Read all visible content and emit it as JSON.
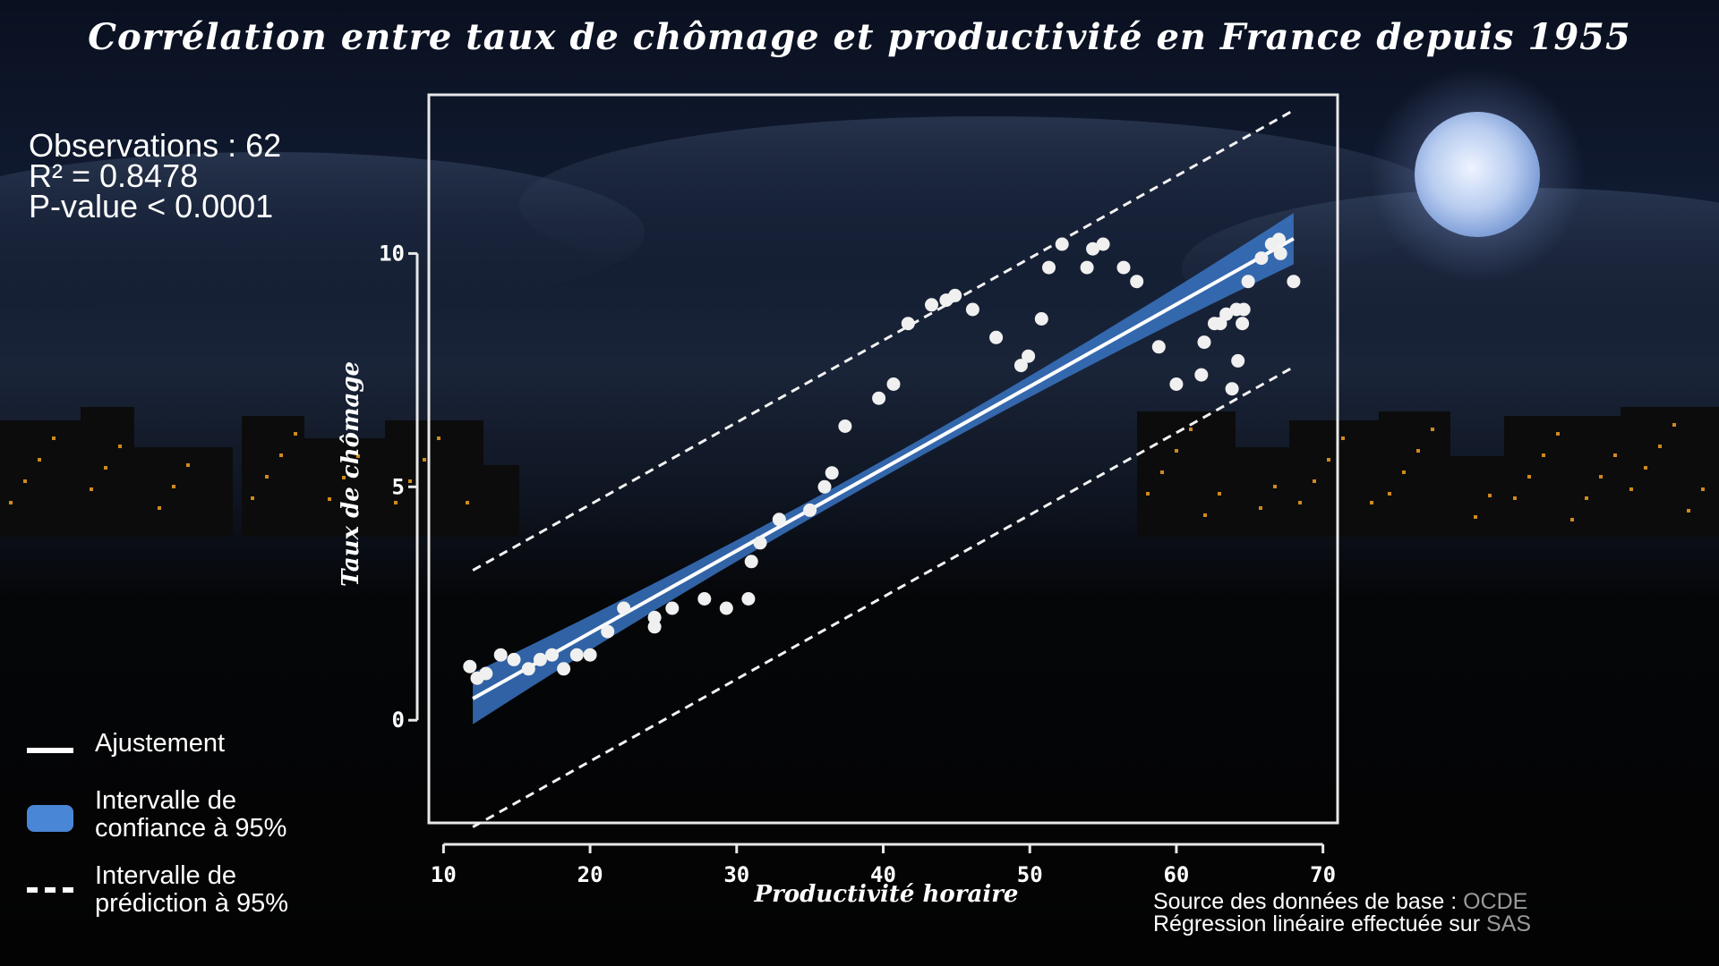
{
  "title": "Corrélation entre taux de chômage et productivité en France depuis 1955",
  "stats": {
    "observations": "Observations : 62",
    "r2": "R² = 0.8478",
    "pvalue": "P-value < 0.0001"
  },
  "legend": {
    "fit": "Ajustement",
    "ci_line1": "Intervalle de",
    "ci_line2": "confiance à 95%",
    "pi_line1": "Intervalle de",
    "pi_line2": "prédiction à 95%"
  },
  "source": {
    "line1_prefix": "Source des données de base : ",
    "line1_highlight": "OCDE",
    "line2_prefix": "Régression linéaire effectuée sur ",
    "line2_highlight": "SAS"
  },
  "colors": {
    "confidence_band": "#3a78c8",
    "fit_line": "#ffffff",
    "points": "#f0f0f0"
  },
  "chart_data": {
    "type": "scatter",
    "xlabel": "Productivité horaire",
    "ylabel": "Taux de chômage",
    "xlim": [
      9,
      71
    ],
    "ylim": [
      -2.2,
      13.4
    ],
    "x_ticks": [
      10,
      20,
      30,
      40,
      50,
      60,
      70
    ],
    "y_ticks": [
      0,
      5,
      10
    ],
    "regression": {
      "intercept": -1.65,
      "slope": 0.176,
      "x_range": [
        12,
        68
      ]
    },
    "confidence_band": {
      "half_width_ends": 0.55,
      "half_width_center": 0.18
    },
    "prediction_band": {
      "half_width": 2.75
    },
    "points": [
      [
        11.8,
        1.15
      ],
      [
        12.3,
        0.9
      ],
      [
        12.9,
        1.0
      ],
      [
        13.9,
        1.4
      ],
      [
        14.8,
        1.3
      ],
      [
        15.8,
        1.1
      ],
      [
        16.6,
        1.3
      ],
      [
        17.4,
        1.4
      ],
      [
        18.2,
        1.1
      ],
      [
        19.1,
        1.4
      ],
      [
        20.0,
        1.4
      ],
      [
        21.2,
        1.9
      ],
      [
        22.3,
        2.4
      ],
      [
        24.4,
        2.0
      ],
      [
        24.4,
        2.2
      ],
      [
        25.6,
        2.4
      ],
      [
        27.8,
        2.6
      ],
      [
        29.3,
        2.4
      ],
      [
        30.8,
        2.6
      ],
      [
        31.0,
        3.4
      ],
      [
        31.6,
        3.8
      ],
      [
        32.9,
        4.3
      ],
      [
        35.0,
        4.5
      ],
      [
        36.0,
        5.0
      ],
      [
        36.5,
        5.3
      ],
      [
        37.4,
        6.3
      ],
      [
        39.7,
        6.9
      ],
      [
        40.7,
        7.2
      ],
      [
        41.7,
        8.5
      ],
      [
        43.3,
        8.9
      ],
      [
        44.3,
        9.0
      ],
      [
        44.9,
        9.1
      ],
      [
        46.1,
        8.8
      ],
      [
        47.7,
        8.2
      ],
      [
        49.4,
        7.6
      ],
      [
        49.9,
        7.8
      ],
      [
        50.8,
        8.6
      ],
      [
        51.3,
        9.7
      ],
      [
        52.2,
        10.2
      ],
      [
        53.9,
        9.7
      ],
      [
        54.3,
        10.1
      ],
      [
        55.0,
        10.2
      ],
      [
        56.4,
        9.7
      ],
      [
        57.3,
        9.4
      ],
      [
        58.8,
        8.0
      ],
      [
        60.0,
        7.2
      ],
      [
        61.7,
        7.4
      ],
      [
        61.9,
        8.1
      ],
      [
        62.6,
        8.5
      ],
      [
        63.0,
        8.5
      ],
      [
        63.4,
        8.7
      ],
      [
        63.8,
        7.1
      ],
      [
        64.1,
        8.8
      ],
      [
        64.2,
        7.7
      ],
      [
        64.5,
        8.5
      ],
      [
        64.6,
        8.8
      ],
      [
        64.9,
        9.4
      ],
      [
        65.8,
        9.9
      ],
      [
        66.5,
        10.2
      ],
      [
        67.0,
        10.3
      ],
      [
        67.1,
        10.0
      ],
      [
        68.0,
        9.4
      ]
    ]
  }
}
